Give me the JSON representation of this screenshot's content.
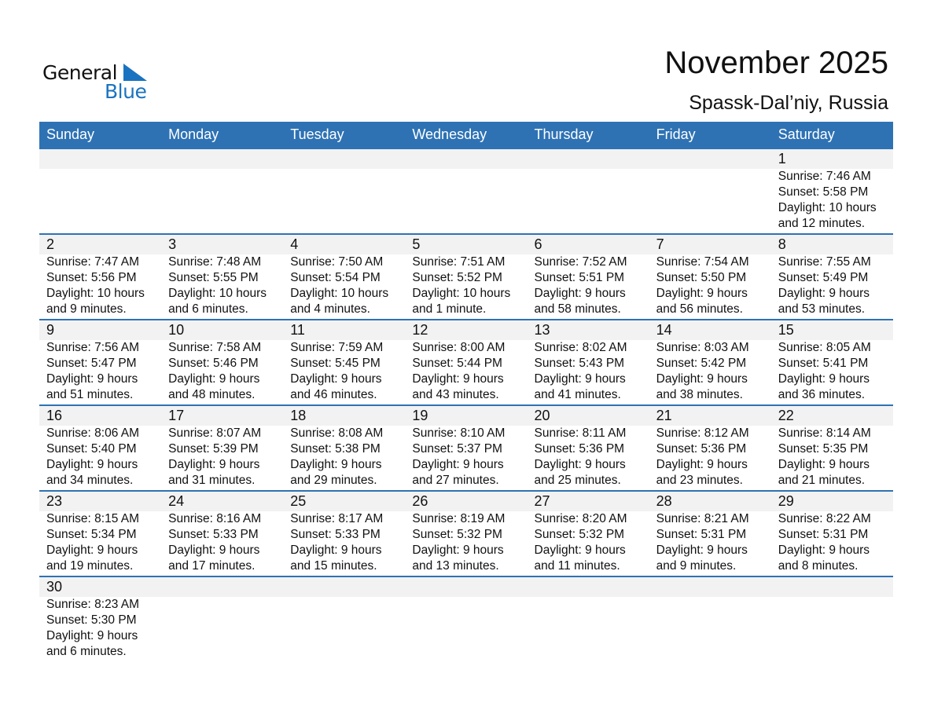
{
  "logo": {
    "text1": "General",
    "text2": "Blue",
    "color": "#1a73c0"
  },
  "title": "November 2025",
  "location": "Spassk-Dal’niy, Russia",
  "header_color": "#2e72b4",
  "weekdays": [
    "Sunday",
    "Monday",
    "Tuesday",
    "Wednesday",
    "Thursday",
    "Friday",
    "Saturday"
  ],
  "weeks": [
    [
      null,
      null,
      null,
      null,
      null,
      null,
      {
        "day": "1",
        "sunrise": "Sunrise: 7:46 AM",
        "sunset": "Sunset: 5:58 PM",
        "daylight": "Daylight: 10 hours",
        "minutes": "and 12 minutes."
      }
    ],
    [
      {
        "day": "2",
        "sunrise": "Sunrise: 7:47 AM",
        "sunset": "Sunset: 5:56 PM",
        "daylight": "Daylight: 10 hours",
        "minutes": "and 9 minutes."
      },
      {
        "day": "3",
        "sunrise": "Sunrise: 7:48 AM",
        "sunset": "Sunset: 5:55 PM",
        "daylight": "Daylight: 10 hours",
        "minutes": "and 6 minutes."
      },
      {
        "day": "4",
        "sunrise": "Sunrise: 7:50 AM",
        "sunset": "Sunset: 5:54 PM",
        "daylight": "Daylight: 10 hours",
        "minutes": "and 4 minutes."
      },
      {
        "day": "5",
        "sunrise": "Sunrise: 7:51 AM",
        "sunset": "Sunset: 5:52 PM",
        "daylight": "Daylight: 10 hours",
        "minutes": "and 1 minute."
      },
      {
        "day": "6",
        "sunrise": "Sunrise: 7:52 AM",
        "sunset": "Sunset: 5:51 PM",
        "daylight": "Daylight: 9 hours",
        "minutes": "and 58 minutes."
      },
      {
        "day": "7",
        "sunrise": "Sunrise: 7:54 AM",
        "sunset": "Sunset: 5:50 PM",
        "daylight": "Daylight: 9 hours",
        "minutes": "and 56 minutes."
      },
      {
        "day": "8",
        "sunrise": "Sunrise: 7:55 AM",
        "sunset": "Sunset: 5:49 PM",
        "daylight": "Daylight: 9 hours",
        "minutes": "and 53 minutes."
      }
    ],
    [
      {
        "day": "9",
        "sunrise": "Sunrise: 7:56 AM",
        "sunset": "Sunset: 5:47 PM",
        "daylight": "Daylight: 9 hours",
        "minutes": "and 51 minutes."
      },
      {
        "day": "10",
        "sunrise": "Sunrise: 7:58 AM",
        "sunset": "Sunset: 5:46 PM",
        "daylight": "Daylight: 9 hours",
        "minutes": "and 48 minutes."
      },
      {
        "day": "11",
        "sunrise": "Sunrise: 7:59 AM",
        "sunset": "Sunset: 5:45 PM",
        "daylight": "Daylight: 9 hours",
        "minutes": "and 46 minutes."
      },
      {
        "day": "12",
        "sunrise": "Sunrise: 8:00 AM",
        "sunset": "Sunset: 5:44 PM",
        "daylight": "Daylight: 9 hours",
        "minutes": "and 43 minutes."
      },
      {
        "day": "13",
        "sunrise": "Sunrise: 8:02 AM",
        "sunset": "Sunset: 5:43 PM",
        "daylight": "Daylight: 9 hours",
        "minutes": "and 41 minutes."
      },
      {
        "day": "14",
        "sunrise": "Sunrise: 8:03 AM",
        "sunset": "Sunset: 5:42 PM",
        "daylight": "Daylight: 9 hours",
        "minutes": "and 38 minutes."
      },
      {
        "day": "15",
        "sunrise": "Sunrise: 8:05 AM",
        "sunset": "Sunset: 5:41 PM",
        "daylight": "Daylight: 9 hours",
        "minutes": "and 36 minutes."
      }
    ],
    [
      {
        "day": "16",
        "sunrise": "Sunrise: 8:06 AM",
        "sunset": "Sunset: 5:40 PM",
        "daylight": "Daylight: 9 hours",
        "minutes": "and 34 minutes."
      },
      {
        "day": "17",
        "sunrise": "Sunrise: 8:07 AM",
        "sunset": "Sunset: 5:39 PM",
        "daylight": "Daylight: 9 hours",
        "minutes": "and 31 minutes."
      },
      {
        "day": "18",
        "sunrise": "Sunrise: 8:08 AM",
        "sunset": "Sunset: 5:38 PM",
        "daylight": "Daylight: 9 hours",
        "minutes": "and 29 minutes."
      },
      {
        "day": "19",
        "sunrise": "Sunrise: 8:10 AM",
        "sunset": "Sunset: 5:37 PM",
        "daylight": "Daylight: 9 hours",
        "minutes": "and 27 minutes."
      },
      {
        "day": "20",
        "sunrise": "Sunrise: 8:11 AM",
        "sunset": "Sunset: 5:36 PM",
        "daylight": "Daylight: 9 hours",
        "minutes": "and 25 minutes."
      },
      {
        "day": "21",
        "sunrise": "Sunrise: 8:12 AM",
        "sunset": "Sunset: 5:36 PM",
        "daylight": "Daylight: 9 hours",
        "minutes": "and 23 minutes."
      },
      {
        "day": "22",
        "sunrise": "Sunrise: 8:14 AM",
        "sunset": "Sunset: 5:35 PM",
        "daylight": "Daylight: 9 hours",
        "minutes": "and 21 minutes."
      }
    ],
    [
      {
        "day": "23",
        "sunrise": "Sunrise: 8:15 AM",
        "sunset": "Sunset: 5:34 PM",
        "daylight": "Daylight: 9 hours",
        "minutes": "and 19 minutes."
      },
      {
        "day": "24",
        "sunrise": "Sunrise: 8:16 AM",
        "sunset": "Sunset: 5:33 PM",
        "daylight": "Daylight: 9 hours",
        "minutes": "and 17 minutes."
      },
      {
        "day": "25",
        "sunrise": "Sunrise: 8:17 AM",
        "sunset": "Sunset: 5:33 PM",
        "daylight": "Daylight: 9 hours",
        "minutes": "and 15 minutes."
      },
      {
        "day": "26",
        "sunrise": "Sunrise: 8:19 AM",
        "sunset": "Sunset: 5:32 PM",
        "daylight": "Daylight: 9 hours",
        "minutes": "and 13 minutes."
      },
      {
        "day": "27",
        "sunrise": "Sunrise: 8:20 AM",
        "sunset": "Sunset: 5:32 PM",
        "daylight": "Daylight: 9 hours",
        "minutes": "and 11 minutes."
      },
      {
        "day": "28",
        "sunrise": "Sunrise: 8:21 AM",
        "sunset": "Sunset: 5:31 PM",
        "daylight": "Daylight: 9 hours",
        "minutes": "and 9 minutes."
      },
      {
        "day": "29",
        "sunrise": "Sunrise: 8:22 AM",
        "sunset": "Sunset: 5:31 PM",
        "daylight": "Daylight: 9 hours",
        "minutes": "and 8 minutes."
      }
    ],
    [
      {
        "day": "30",
        "sunrise": "Sunrise: 8:23 AM",
        "sunset": "Sunset: 5:30 PM",
        "daylight": "Daylight: 9 hours",
        "minutes": "and 6 minutes."
      },
      null,
      null,
      null,
      null,
      null,
      null
    ]
  ]
}
